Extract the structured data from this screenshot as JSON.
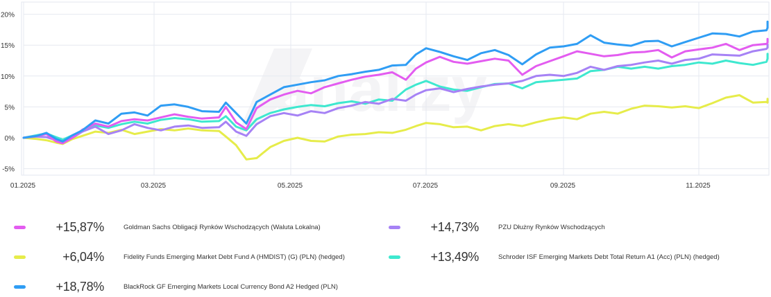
{
  "chart_data": {
    "type": "line",
    "title": "",
    "xlabel": "",
    "ylabel": "",
    "ylim": [
      -6,
      22
    ],
    "yticks": [
      20,
      15,
      10,
      5,
      0,
      -5
    ],
    "ytick_labels": [
      "20%",
      "15%",
      "10%",
      "5%",
      "0%",
      "-5%"
    ],
    "xtick_labels": [
      "01.2025",
      "03.2025",
      "05.2025",
      "07.2025",
      "09.2025",
      "11.2025"
    ],
    "xtick_positions_months": [
      0,
      2,
      4,
      6,
      8,
      10
    ],
    "x_range_months": [
      0,
      11.5
    ],
    "grid": true,
    "watermark": "analizy",
    "series": [
      {
        "name": "Goldman Sachs Obligacji Rynków Wschodzących (Waluta Lokalna)",
        "final": "+15,87%",
        "color": "#e35cf0",
        "x": [
          0,
          0.2,
          0.35,
          0.5,
          0.6,
          0.75,
          0.9,
          1.1,
          1.3,
          1.5,
          1.7,
          1.9,
          2.1,
          2.3,
          2.5,
          2.7,
          2.95,
          3.05,
          3.2,
          3.35,
          3.5,
          3.7,
          3.9,
          4.1,
          4.3,
          4.5,
          4.7,
          4.9,
          5.1,
          5.3,
          5.5,
          5.7,
          5.85,
          6.0,
          6.2,
          6.4,
          6.6,
          6.8,
          7.0,
          7.2,
          7.4,
          7.6,
          7.8,
          8.0,
          8.2,
          8.4,
          8.6,
          8.8,
          9.0,
          9.2,
          9.4,
          9.6,
          9.8,
          10.0,
          10.2,
          10.4,
          10.6,
          10.8,
          11.0,
          11.2,
          11.4,
          11.5
        ],
        "y": [
          0,
          0.3,
          0.6,
          -0.6,
          -0.9,
          0,
          1.3,
          2.3,
          1.8,
          2.7,
          3.0,
          2.8,
          3.3,
          3.8,
          3.4,
          3.1,
          3.3,
          5.0,
          2.5,
          1.4,
          4.8,
          6.2,
          7.0,
          7.6,
          7.2,
          8.2,
          8.8,
          9.4,
          9.9,
          10.2,
          10.6,
          9.4,
          11.2,
          12.2,
          13.1,
          12.3,
          12.0,
          12.4,
          12.8,
          12.5,
          10.2,
          11.6,
          12.4,
          13.2,
          14.0,
          13.6,
          13.2,
          13.4,
          13.8,
          13.9,
          14.2,
          13.0,
          14.0,
          14.3,
          14.6,
          15.2,
          14.2,
          15.0,
          15.2,
          15.4,
          16.0,
          15.87
        ]
      },
      {
        "name": "PZU Dłużny Rynków Wschodzących",
        "final": "+14,73%",
        "color": "#a682f5",
        "x": [
          0,
          0.2,
          0.35,
          0.5,
          0.6,
          0.75,
          0.9,
          1.1,
          1.3,
          1.5,
          1.7,
          1.9,
          2.1,
          2.3,
          2.5,
          2.7,
          2.95,
          3.05,
          3.2,
          3.35,
          3.5,
          3.7,
          3.9,
          4.1,
          4.3,
          4.5,
          4.7,
          4.9,
          5.1,
          5.3,
          5.5,
          5.7,
          5.85,
          6.0,
          6.2,
          6.4,
          6.6,
          6.8,
          7.0,
          7.2,
          7.4,
          7.6,
          7.8,
          8.0,
          8.2,
          8.4,
          8.6,
          8.8,
          9.0,
          9.2,
          9.4,
          9.6,
          9.8,
          10.0,
          10.2,
          10.4,
          10.6,
          10.8,
          11.0,
          11.2,
          11.4,
          11.5
        ],
        "y": [
          0,
          0.2,
          0.1,
          -0.4,
          -0.7,
          0,
          1.0,
          1.8,
          0.6,
          1.2,
          2.2,
          1.6,
          1.2,
          1.8,
          2.0,
          1.6,
          1.7,
          2.6,
          1.0,
          0.3,
          2.2,
          3.5,
          4.0,
          3.6,
          4.3,
          4.0,
          4.8,
          5.2,
          5.8,
          5.5,
          6.3,
          6.0,
          7.0,
          7.7,
          8.0,
          7.4,
          7.9,
          8.3,
          8.6,
          8.8,
          9.2,
          10.0,
          10.2,
          10.0,
          10.5,
          11.5,
          11.0,
          11.6,
          11.8,
          12.2,
          12.5,
          12.0,
          12.6,
          12.8,
          13.5,
          13.4,
          13.3,
          14.0,
          14.4,
          14.6,
          15.1,
          14.73
        ]
      },
      {
        "name": "Fidelity Funds Emerging Market Debt Fund A (HMDIST) (G) (PLN) (hedged)",
        "final": "+6,04%",
        "color": "#e6ec4a",
        "x": [
          0,
          0.2,
          0.35,
          0.5,
          0.6,
          0.75,
          0.9,
          1.1,
          1.3,
          1.5,
          1.7,
          1.9,
          2.1,
          2.3,
          2.5,
          2.7,
          2.95,
          3.05,
          3.2,
          3.35,
          3.5,
          3.7,
          3.9,
          4.1,
          4.3,
          4.5,
          4.7,
          4.9,
          5.1,
          5.3,
          5.5,
          5.7,
          5.85,
          6.0,
          6.2,
          6.4,
          6.6,
          6.8,
          7.0,
          7.2,
          7.4,
          7.6,
          7.8,
          8.0,
          8.2,
          8.4,
          8.6,
          8.8,
          9.0,
          9.2,
          9.4,
          9.6,
          9.8,
          10.0,
          10.2,
          10.4,
          10.6,
          10.8,
          11.0,
          11.2,
          11.4,
          11.5
        ],
        "y": [
          0,
          -0.2,
          -0.4,
          -0.8,
          -1.0,
          -0.2,
          0.3,
          1.0,
          0.8,
          1.3,
          0.6,
          1.0,
          1.4,
          1.2,
          1.5,
          1.2,
          1.1,
          0.2,
          -1.2,
          -3.5,
          -3.3,
          -1.5,
          -0.5,
          0,
          -0.5,
          -0.6,
          0.2,
          0.5,
          0.6,
          0.9,
          0.8,
          1.3,
          1.9,
          2.4,
          2.2,
          1.7,
          1.8,
          1.2,
          1.9,
          2.2,
          1.9,
          2.5,
          3.0,
          3.3,
          3.0,
          3.9,
          4.2,
          3.9,
          4.7,
          5.2,
          5.1,
          4.9,
          5.1,
          4.8,
          5.6,
          6.5,
          6.9,
          5.7,
          5.8,
          5.7,
          6.3,
          6.04
        ]
      },
      {
        "name": "Schroder ISF Emerging Markets Debt Total Return A1 (Acc) (PLN) (hedged)",
        "final": "+13,49%",
        "color": "#3ee8cf",
        "x": [
          0,
          0.2,
          0.35,
          0.5,
          0.6,
          0.75,
          0.9,
          1.1,
          1.3,
          1.5,
          1.7,
          1.9,
          2.1,
          2.3,
          2.5,
          2.7,
          2.95,
          3.05,
          3.2,
          3.35,
          3.5,
          3.7,
          3.9,
          4.1,
          4.3,
          4.5,
          4.7,
          4.9,
          5.1,
          5.3,
          5.5,
          5.7,
          5.85,
          6.0,
          6.2,
          6.4,
          6.6,
          6.8,
          7.0,
          7.2,
          7.4,
          7.6,
          7.8,
          8.0,
          8.2,
          8.4,
          8.6,
          8.8,
          9.0,
          9.2,
          9.4,
          9.6,
          9.8,
          10.0,
          10.2,
          10.4,
          10.6,
          10.8,
          11.0,
          11.2,
          11.4,
          11.5
        ],
        "y": [
          0,
          0.4,
          0.7,
          0.1,
          -0.3,
          0.4,
          1.0,
          2.0,
          1.6,
          2.2,
          2.6,
          2.3,
          2.9,
          3.2,
          3.0,
          2.6,
          2.7,
          3.5,
          1.8,
          1.2,
          3.0,
          4.0,
          4.6,
          5.0,
          5.3,
          5.1,
          5.6,
          5.9,
          5.5,
          6.2,
          6.0,
          7.8,
          8.6,
          9.2,
          8.3,
          7.8,
          7.6,
          8.2,
          8.7,
          8.8,
          8.0,
          9.0,
          9.2,
          9.4,
          9.6,
          10.8,
          11.0,
          11.5,
          11.2,
          11.5,
          11.2,
          11.6,
          11.8,
          12.2,
          12.0,
          12.5,
          12.1,
          11.8,
          12.3,
          12.8,
          13.6,
          13.49
        ]
      },
      {
        "name": "BlackRock GF Emerging Markets Local Currency Bond A2 Hedged (PLN)",
        "final": "+18,78%",
        "color": "#2f9df4",
        "x": [
          0,
          0.2,
          0.35,
          0.5,
          0.6,
          0.75,
          0.9,
          1.1,
          1.3,
          1.5,
          1.7,
          1.9,
          2.1,
          2.3,
          2.5,
          2.7,
          2.95,
          3.05,
          3.2,
          3.35,
          3.5,
          3.7,
          3.9,
          4.1,
          4.3,
          4.5,
          4.7,
          4.9,
          5.1,
          5.3,
          5.5,
          5.7,
          5.85,
          6.0,
          6.2,
          6.4,
          6.6,
          6.8,
          7.0,
          7.2,
          7.4,
          7.6,
          7.8,
          8.0,
          8.2,
          8.4,
          8.6,
          8.8,
          9.0,
          9.2,
          9.4,
          9.6,
          9.8,
          10.0,
          10.2,
          10.4,
          10.6,
          10.8,
          11.0,
          11.2,
          11.4,
          11.5
        ],
        "y": [
          0,
          0.3,
          0.8,
          -0.2,
          -0.6,
          0.4,
          1.2,
          2.8,
          2.3,
          3.9,
          4.1,
          3.6,
          5.2,
          5.4,
          5.0,
          4.3,
          4.2,
          5.7,
          4.0,
          2.3,
          5.8,
          7.0,
          8.2,
          8.6,
          9.0,
          9.3,
          10.0,
          10.3,
          10.7,
          11.0,
          11.7,
          11.8,
          13.5,
          14.5,
          13.9,
          13.2,
          12.6,
          13.7,
          14.2,
          13.4,
          11.9,
          13.5,
          14.6,
          14.8,
          15.2,
          16.6,
          15.4,
          15.1,
          14.9,
          15.6,
          15.7,
          14.8,
          15.5,
          16.2,
          16.9,
          16.8,
          16.4,
          17.2,
          17.4,
          17.8,
          18.8,
          18.78
        ]
      }
    ]
  },
  "legend_layout_order": [
    0,
    1,
    2,
    3,
    4
  ]
}
